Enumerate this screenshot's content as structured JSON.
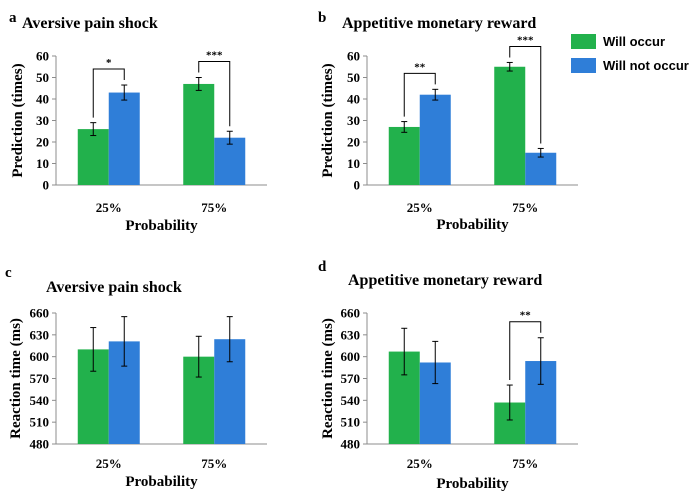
{
  "legend": {
    "items": [
      {
        "label": "Will occur",
        "color": "#22b14c"
      },
      {
        "label": "Will not occur",
        "color": "#2f7ed8"
      }
    ]
  },
  "chart_data": [
    {
      "panel": "a",
      "type": "bar",
      "title": "Aversive pain shock",
      "xlabel": "Probability",
      "ylabel": "Prediction (times)",
      "categories": [
        "25%",
        "75%"
      ],
      "series": [
        {
          "name": "Will occur",
          "color": "#22b14c",
          "values": [
            26,
            47
          ],
          "errors": [
            3,
            3
          ]
        },
        {
          "name": "Will not occur",
          "color": "#2f7ed8",
          "values": [
            43,
            22
          ],
          "errors": [
            3.5,
            3
          ]
        }
      ],
      "ylim": [
        0,
        60
      ],
      "yticks": [
        0,
        10,
        20,
        30,
        40,
        50,
        60
      ],
      "significance": [
        "*",
        "***"
      ]
    },
    {
      "panel": "b",
      "type": "bar",
      "title": "Appetitive monetary reward",
      "xlabel": "Probability",
      "ylabel": "Prediction (times)",
      "categories": [
        "25%",
        "75%"
      ],
      "series": [
        {
          "name": "Will occur",
          "color": "#22b14c",
          "values": [
            27,
            55
          ],
          "errors": [
            2.5,
            2
          ]
        },
        {
          "name": "Will not occur",
          "color": "#2f7ed8",
          "values": [
            42,
            15
          ],
          "errors": [
            2.5,
            2
          ]
        }
      ],
      "ylim": [
        0,
        60
      ],
      "yticks": [
        0,
        10,
        20,
        30,
        40,
        50,
        60
      ],
      "significance": [
        "**",
        "***"
      ]
    },
    {
      "panel": "c",
      "type": "bar",
      "title": "Aversive pain shock",
      "xlabel": "Probability",
      "ylabel": "Reaction time (ms)",
      "categories": [
        "25%",
        "75%"
      ],
      "series": [
        {
          "name": "Will occur",
          "color": "#22b14c",
          "values": [
            610,
            600
          ],
          "errors": [
            30,
            28
          ]
        },
        {
          "name": "Will not occur",
          "color": "#2f7ed8",
          "values": [
            621,
            624
          ],
          "errors": [
            34,
            31
          ]
        }
      ],
      "ylim": [
        480,
        660
      ],
      "yticks": [
        480,
        510,
        540,
        570,
        600,
        630,
        660
      ],
      "significance": [
        "",
        ""
      ]
    },
    {
      "panel": "d",
      "type": "bar",
      "title": "Appetitive monetary reward",
      "xlabel": "Probability",
      "ylabel": "Reaction time (ms)",
      "categories": [
        "25%",
        "75%"
      ],
      "series": [
        {
          "name": "Will occur",
          "color": "#22b14c",
          "values": [
            607,
            537
          ],
          "errors": [
            32,
            24
          ]
        },
        {
          "name": "Will not occur",
          "color": "#2f7ed8",
          "values": [
            592,
            594
          ],
          "errors": [
            29,
            32
          ]
        }
      ],
      "ylim": [
        480,
        660
      ],
      "yticks": [
        480,
        510,
        540,
        570,
        600,
        630,
        660
      ],
      "significance": [
        "",
        "**"
      ]
    }
  ]
}
